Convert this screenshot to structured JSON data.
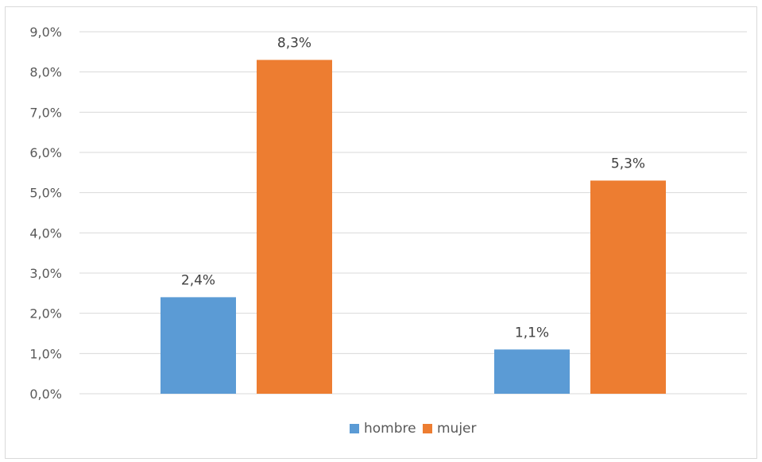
{
  "chart_data": {
    "type": "bar",
    "categories": [
      "",
      ""
    ],
    "series": [
      {
        "name": "hombre",
        "values": [
          2.4,
          1.1
        ],
        "labels": [
          "2,4%",
          "1,1%"
        ],
        "color": "#5b9bd5"
      },
      {
        "name": "mujer",
        "values": [
          8.3,
          5.3
        ],
        "labels": [
          "8,3%",
          "5,3%"
        ],
        "color": "#ed7d31"
      }
    ],
    "y_ticks": [
      "0,0%",
      "1,0%",
      "2,0%",
      "3,0%",
      "4,0%",
      "5,0%",
      "6,0%",
      "7,0%",
      "8,0%",
      "9,0%"
    ],
    "ylim": [
      0,
      9
    ],
    "grid": true,
    "legend": "bottom",
    "title": "",
    "xlabel": "",
    "ylabel": ""
  }
}
